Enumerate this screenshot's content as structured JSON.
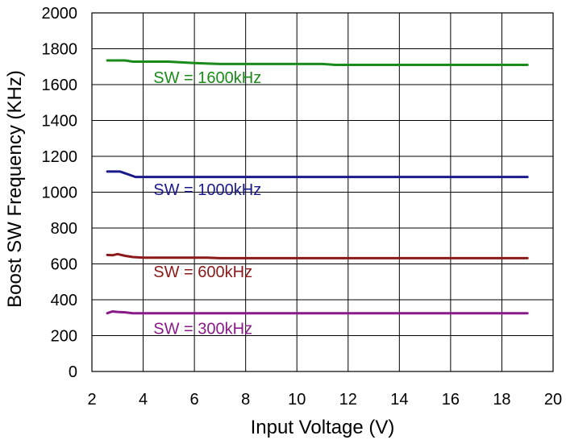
{
  "chart_data": {
    "type": "line",
    "title": "",
    "xlabel": "Input Voltage (V)",
    "ylabel": "Boost SW Frequency (KHz)",
    "xlim": [
      2,
      20
    ],
    "ylim": [
      0,
      2000
    ],
    "xticks": [
      2,
      4,
      6,
      8,
      10,
      12,
      14,
      16,
      18,
      20
    ],
    "yticks": [
      0,
      200,
      400,
      600,
      800,
      1000,
      1200,
      1400,
      1600,
      1800,
      2000
    ],
    "grid": true,
    "legend": "none",
    "series": [
      {
        "name": "SW = 1600kHz",
        "color": "#1a8a1a",
        "label_anchor": [
          4.4,
          1610
        ],
        "x": [
          2.6,
          3.3,
          3.6,
          4.0,
          5.0,
          6.0,
          7.0,
          8.0,
          9.0,
          10.0,
          11.0,
          11.5,
          12.0,
          13.0,
          14.0,
          15.0,
          16.0,
          17.0,
          18.0,
          19.0
        ],
        "y": [
          1735,
          1735,
          1728,
          1728,
          1728,
          1720,
          1715,
          1715,
          1715,
          1715,
          1715,
          1710,
          1710,
          1710,
          1710,
          1710,
          1710,
          1710,
          1710,
          1710
        ]
      },
      {
        "name": "SW = 1000kHz",
        "color": "#1a1a8a",
        "label_anchor": [
          4.4,
          985
        ],
        "x": [
          2.6,
          3.1,
          3.4,
          3.7,
          4.0,
          5.0,
          6.0,
          7.0,
          8.0,
          9.0,
          10.0,
          11.0,
          12.0,
          13.0,
          14.0,
          15.0,
          16.0,
          17.0,
          18.0,
          19.0
        ],
        "y": [
          1115,
          1115,
          1100,
          1085,
          1085,
          1085,
          1085,
          1085,
          1085,
          1085,
          1085,
          1085,
          1085,
          1085,
          1085,
          1085,
          1085,
          1085,
          1085,
          1085
        ]
      },
      {
        "name": "SW = 600kHz",
        "color": "#8a1a1a",
        "label_anchor": [
          4.4,
          525
        ],
        "x": [
          2.6,
          2.8,
          3.0,
          3.3,
          3.6,
          4.0,
          5.0,
          6.0,
          6.5,
          7.0,
          8.0,
          9.0,
          10.0,
          11.0,
          12.0,
          13.0,
          14.0,
          15.0,
          16.0,
          17.0,
          18.0,
          19.0
        ],
        "y": [
          650,
          648,
          655,
          645,
          638,
          635,
          635,
          635,
          635,
          632,
          632,
          632,
          632,
          632,
          632,
          632,
          632,
          632,
          632,
          632,
          632,
          632
        ]
      },
      {
        "name": "SW = 300kHz",
        "color": "#8a1a8a",
        "label_anchor": [
          4.4,
          210
        ],
        "x": [
          2.6,
          2.8,
          3.0,
          3.3,
          3.6,
          4.0,
          5.0,
          6.0,
          7.0,
          8.0,
          9.0,
          10.0,
          11.0,
          12.0,
          13.0,
          14.0,
          15.0,
          16.0,
          17.0,
          18.0,
          19.0
        ],
        "y": [
          325,
          335,
          332,
          330,
          325,
          325,
          325,
          325,
          325,
          325,
          325,
          325,
          325,
          325,
          325,
          325,
          325,
          325,
          325,
          325,
          325
        ]
      }
    ]
  }
}
